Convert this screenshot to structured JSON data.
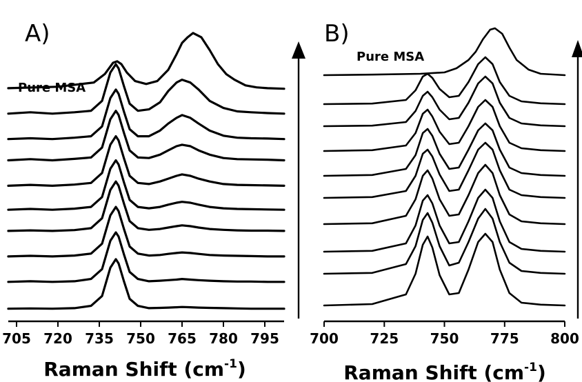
{
  "chart_data": [
    {
      "type": "line",
      "panel_label": "A)",
      "xlabel": "Raman Shift (cm",
      "xlabel_sup": "-1",
      "xlabel_end": ")",
      "xlim": [
        702,
        802
      ],
      "xticks": [
        "705",
        "720",
        "735",
        "750",
        "765",
        "780",
        "795"
      ],
      "annotation": "Pure MSA",
      "arrow": "up",
      "series": [
        {
          "baseline": 8.05,
          "x": [
            702,
            720,
            733,
            737,
            740,
            741.5,
            743,
            745,
            748,
            752,
            756,
            760,
            763,
            765,
            767,
            769,
            772,
            775,
            778,
            781,
            784,
            788,
            792,
            796,
            802
          ],
          "y": [
            0.05,
            0.1,
            0.25,
            0.55,
            0.95,
            1.0,
            0.9,
            0.6,
            0.3,
            0.2,
            0.3,
            0.7,
            1.25,
            1.65,
            1.85,
            2.0,
            1.85,
            1.4,
            0.9,
            0.55,
            0.35,
            0.15,
            0.08,
            0.05,
            0.03
          ]
        },
        {
          "baseline": 7.2,
          "x": [
            702,
            710,
            718,
            726,
            732,
            736,
            739,
            741,
            742,
            744,
            746,
            749,
            753,
            757,
            760,
            763,
            765,
            768,
            771,
            775,
            780,
            785,
            790,
            796,
            802
          ],
          "y": [
            0,
            0.05,
            0,
            0.05,
            0.1,
            0.45,
            1.45,
            1.75,
            1.6,
            0.95,
            0.35,
            0.1,
            0.15,
            0.4,
            0.8,
            1.1,
            1.2,
            1.1,
            0.85,
            0.45,
            0.2,
            0.08,
            0.05,
            0.02,
            0
          ]
        },
        {
          "baseline": 6.3,
          "x": [
            702,
            710,
            718,
            726,
            732,
            736,
            739,
            741,
            742,
            744,
            746,
            749,
            753,
            757,
            760,
            763,
            765,
            768,
            771,
            775,
            780,
            785,
            790,
            796,
            802
          ],
          "y": [
            0,
            0.03,
            0,
            0.05,
            0.1,
            0.45,
            1.45,
            1.75,
            1.6,
            0.95,
            0.35,
            0.1,
            0.1,
            0.3,
            0.55,
            0.75,
            0.85,
            0.75,
            0.55,
            0.3,
            0.12,
            0.05,
            0.03,
            0.02,
            0
          ]
        },
        {
          "baseline": 5.55,
          "x": [
            702,
            710,
            718,
            726,
            732,
            736,
            739,
            741,
            742,
            744,
            746,
            749,
            753,
            757,
            760,
            763,
            765,
            768,
            771,
            775,
            780,
            785,
            790,
            796,
            802
          ],
          "y": [
            0,
            0.04,
            0,
            0.05,
            0.1,
            0.45,
            1.45,
            1.75,
            1.6,
            0.95,
            0.35,
            0.1,
            0.08,
            0.2,
            0.35,
            0.5,
            0.55,
            0.5,
            0.35,
            0.2,
            0.08,
            0.04,
            0.03,
            0.02,
            0
          ]
        },
        {
          "baseline": 4.65,
          "x": [
            702,
            710,
            718,
            726,
            732,
            736,
            739,
            741,
            742,
            744,
            746,
            749,
            753,
            757,
            760,
            763,
            765,
            768,
            771,
            775,
            780,
            785,
            790,
            796,
            802
          ],
          "y": [
            0,
            0.03,
            0,
            0.04,
            0.1,
            0.45,
            1.45,
            1.75,
            1.6,
            0.95,
            0.35,
            0.1,
            0.06,
            0.15,
            0.25,
            0.35,
            0.4,
            0.35,
            0.25,
            0.15,
            0.06,
            0.03,
            0.02,
            0.01,
            0
          ]
        },
        {
          "baseline": 3.8,
          "x": [
            702,
            710,
            718,
            726,
            732,
            736,
            739,
            741,
            742,
            744,
            746,
            749,
            753,
            757,
            760,
            763,
            765,
            768,
            771,
            775,
            780,
            785,
            790,
            796,
            802
          ],
          "y": [
            0,
            0.03,
            0,
            0.04,
            0.1,
            0.45,
            1.45,
            1.75,
            1.6,
            0.95,
            0.35,
            0.1,
            0.05,
            0.1,
            0.18,
            0.25,
            0.28,
            0.25,
            0.18,
            0.1,
            0.05,
            0.03,
            0.02,
            0.01,
            0
          ]
        },
        {
          "baseline": 3.05,
          "x": [
            702,
            710,
            718,
            726,
            732,
            736,
            739,
            741,
            742,
            744,
            746,
            749,
            753,
            757,
            760,
            763,
            765,
            768,
            771,
            775,
            780,
            785,
            790,
            796,
            802
          ],
          "y": [
            0,
            0.02,
            0,
            0.03,
            0.1,
            0.45,
            1.45,
            1.75,
            1.6,
            0.95,
            0.35,
            0.1,
            0.04,
            0.07,
            0.12,
            0.17,
            0.2,
            0.17,
            0.12,
            0.07,
            0.04,
            0.02,
            0.01,
            0.01,
            0
          ]
        },
        {
          "baseline": 2.15,
          "x": [
            702,
            710,
            718,
            726,
            732,
            736,
            739,
            741,
            742,
            744,
            746,
            749,
            753,
            757,
            760,
            763,
            765,
            768,
            771,
            775,
            780,
            785,
            790,
            796,
            802
          ],
          "y": [
            0,
            0.02,
            0,
            0.03,
            0.1,
            0.45,
            1.45,
            1.75,
            1.6,
            0.95,
            0.35,
            0.1,
            0.03,
            0.05,
            0.09,
            0.12,
            0.14,
            0.12,
            0.09,
            0.05,
            0.03,
            0.02,
            0.01,
            0,
            0
          ]
        },
        {
          "baseline": 1.25,
          "x": [
            702,
            710,
            718,
            726,
            732,
            736,
            739,
            741,
            742,
            744,
            746,
            749,
            753,
            757,
            760,
            763,
            765,
            768,
            771,
            775,
            780,
            785,
            790,
            796,
            802
          ],
          "y": [
            0,
            0.02,
            0,
            0.02,
            0.1,
            0.45,
            1.45,
            1.75,
            1.6,
            0.95,
            0.35,
            0.1,
            0.02,
            0.04,
            0.06,
            0.08,
            0.1,
            0.08,
            0.06,
            0.04,
            0.02,
            0.01,
            0.01,
            0,
            0
          ]
        },
        {
          "baseline": 0.3,
          "x": [
            702,
            710,
            718,
            726,
            732,
            736,
            739,
            741,
            742,
            744,
            746,
            749,
            753,
            757,
            760,
            763,
            765,
            768,
            771,
            775,
            780,
            785,
            790,
            796,
            802
          ],
          "y": [
            0,
            0.01,
            0,
            0.02,
            0.1,
            0.45,
            1.45,
            1.75,
            1.6,
            0.95,
            0.35,
            0.1,
            0.02,
            0.03,
            0.04,
            0.05,
            0.06,
            0.05,
            0.04,
            0.03,
            0.02,
            0.01,
            0,
            0,
            0
          ]
        }
      ]
    },
    {
      "type": "line",
      "panel_label": "B)",
      "xlabel": "Raman Shift (cm",
      "xlabel_sup": "-1",
      "xlabel_end": ")",
      "xlim": [
        700,
        800
      ],
      "xticks": [
        "700",
        "725",
        "750",
        "775",
        "800"
      ],
      "annotation": "Pure MSA",
      "arrow": "up",
      "series": [
        {
          "baseline": 8.8,
          "x": [
            700,
            720,
            740,
            750,
            755,
            760,
            763,
            766,
            769,
            771,
            774,
            777,
            780,
            785,
            790,
            800
          ],
          "y": [
            0,
            0.02,
            0.05,
            0.1,
            0.25,
            0.55,
            0.85,
            1.3,
            1.65,
            1.7,
            1.5,
            1.0,
            0.55,
            0.2,
            0.05,
            0
          ]
        },
        {
          "baseline": 7.75,
          "x": [
            700,
            720,
            734,
            738,
            741,
            743,
            745,
            748,
            752,
            756,
            760,
            764,
            767,
            770,
            773,
            777,
            782,
            790,
            800
          ],
          "y": [
            0,
            0.02,
            0.15,
            0.5,
            1.0,
            1.1,
            0.95,
            0.55,
            0.25,
            0.3,
            0.8,
            1.45,
            1.7,
            1.45,
            0.8,
            0.3,
            0.1,
            0.03,
            0
          ]
        },
        {
          "baseline": 6.95,
          "x": [
            700,
            720,
            734,
            738,
            741,
            743,
            745,
            748,
            752,
            756,
            760,
            764,
            767,
            770,
            773,
            777,
            782,
            790,
            800
          ],
          "y": [
            0,
            0.02,
            0.15,
            0.55,
            1.1,
            1.25,
            1.05,
            0.6,
            0.25,
            0.3,
            0.85,
            1.55,
            1.8,
            1.55,
            0.85,
            0.3,
            0.1,
            0.03,
            0
          ]
        },
        {
          "baseline": 6.05,
          "x": [
            700,
            720,
            734,
            738,
            741,
            743,
            745,
            748,
            752,
            756,
            760,
            764,
            767,
            770,
            773,
            777,
            782,
            790,
            800
          ],
          "y": [
            0,
            0.03,
            0.2,
            0.65,
            1.35,
            1.5,
            1.25,
            0.7,
            0.25,
            0.3,
            0.9,
            1.6,
            1.85,
            1.6,
            0.9,
            0.3,
            0.1,
            0.03,
            0
          ]
        },
        {
          "baseline": 5.15,
          "x": [
            700,
            720,
            734,
            738,
            741,
            743,
            745,
            748,
            752,
            756,
            760,
            764,
            767,
            770,
            773,
            777,
            782,
            790,
            800
          ],
          "y": [
            0,
            0.03,
            0.25,
            0.75,
            1.55,
            1.7,
            1.45,
            0.8,
            0.25,
            0.3,
            0.95,
            1.65,
            1.9,
            1.65,
            0.95,
            0.3,
            0.1,
            0.03,
            0
          ]
        },
        {
          "baseline": 4.35,
          "x": [
            700,
            720,
            734,
            738,
            741,
            743,
            745,
            748,
            752,
            756,
            760,
            764,
            767,
            770,
            773,
            777,
            782,
            790,
            800
          ],
          "y": [
            0,
            0.03,
            0.25,
            0.8,
            1.6,
            1.75,
            1.5,
            0.85,
            0.25,
            0.3,
            1.0,
            1.75,
            2.0,
            1.75,
            1.0,
            0.3,
            0.1,
            0.03,
            0
          ]
        },
        {
          "baseline": 3.4,
          "x": [
            700,
            720,
            734,
            738,
            741,
            743,
            745,
            748,
            752,
            756,
            760,
            764,
            767,
            770,
            773,
            777,
            782,
            790,
            800
          ],
          "y": [
            0,
            0.03,
            0.3,
            0.9,
            1.75,
            1.95,
            1.65,
            0.9,
            0.3,
            0.35,
            1.05,
            1.85,
            2.15,
            1.85,
            1.05,
            0.35,
            0.1,
            0.03,
            0
          ]
        },
        {
          "baseline": 2.4,
          "x": [
            700,
            720,
            734,
            738,
            741,
            743,
            745,
            748,
            752,
            756,
            760,
            764,
            767,
            770,
            773,
            777,
            782,
            790,
            800
          ],
          "y": [
            0,
            0.03,
            0.3,
            0.95,
            1.85,
            2.05,
            1.75,
            0.95,
            0.3,
            0.35,
            1.1,
            1.95,
            2.25,
            1.95,
            1.1,
            0.35,
            0.1,
            0.03,
            0
          ]
        },
        {
          "baseline": 1.6,
          "x": [
            700,
            720,
            734,
            738,
            741,
            743,
            745,
            748,
            752,
            756,
            760,
            764,
            767,
            770,
            773,
            777,
            782,
            790,
            800
          ],
          "y": [
            0,
            0.03,
            0.35,
            1.0,
            1.95,
            2.2,
            1.85,
            1.0,
            0.3,
            0.4,
            1.15,
            2.0,
            2.35,
            2.0,
            1.15,
            0.4,
            0.1,
            0.03,
            0
          ]
        },
        {
          "baseline": 0.45,
          "x": [
            700,
            720,
            734,
            738,
            741,
            743,
            745,
            748,
            752,
            756,
            760,
            764,
            767,
            770,
            773,
            777,
            782,
            790,
            800
          ],
          "y": [
            0,
            0.05,
            0.4,
            1.15,
            2.2,
            2.5,
            2.1,
            1.1,
            0.4,
            0.45,
            1.3,
            2.3,
            2.6,
            2.3,
            1.3,
            0.45,
            0.1,
            0.03,
            0
          ]
        }
      ]
    }
  ]
}
